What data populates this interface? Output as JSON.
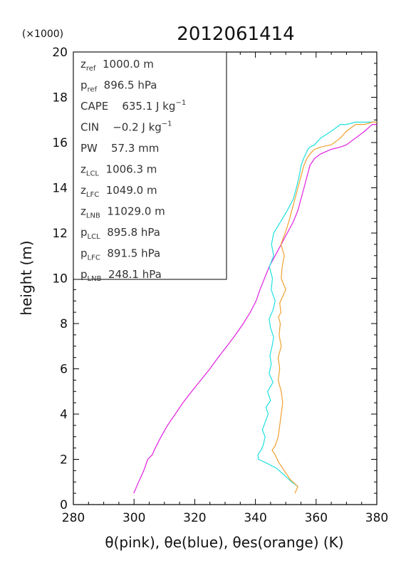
{
  "chart_data": {
    "type": "line",
    "title": "2012061414",
    "y_multiplier": "(×1000)",
    "xlabel": "θ(pink), θe(blue), θes(orange)   (K)",
    "ylabel": "height (m)",
    "xlim": [
      280,
      380
    ],
    "ylim": [
      0,
      20
    ],
    "x_ticks": [
      280,
      300,
      320,
      340,
      360,
      380
    ],
    "y_ticks": [
      0,
      2,
      4,
      6,
      8,
      10,
      12,
      14,
      16,
      18,
      20
    ],
    "grid": false,
    "series": [
      {
        "name": "θ",
        "color": "#e020e0",
        "x": [
          299.9,
          301.5,
          303.2,
          304.5,
          306.0,
          307.0,
          308.9,
          311.0,
          313.6,
          316.1,
          319.0,
          322.0,
          325.0,
          327.7,
          330.6,
          333.4,
          336.0,
          338.3,
          340.2,
          341.5,
          343.0,
          344.5,
          346.5,
          348.5,
          350.5,
          352.5,
          354.0,
          355.0,
          356.0,
          357.0,
          358.0,
          359.5,
          361.5,
          365.0,
          368.0,
          370.0,
          373.0,
          376.0,
          378.5,
          380.0
        ],
        "y": [
          0.5,
          1.0,
          1.5,
          2.0,
          2.2,
          2.5,
          3.0,
          3.5,
          4.0,
          4.5,
          5.0,
          5.5,
          6.0,
          6.5,
          7.0,
          7.5,
          8.0,
          8.5,
          9.0,
          9.5,
          10.0,
          10.5,
          11.0,
          11.5,
          12.0,
          12.5,
          13.0,
          13.5,
          14.0,
          14.5,
          15.0,
          15.3,
          15.5,
          15.7,
          15.8,
          15.9,
          16.2,
          16.5,
          16.8,
          16.8
        ]
      },
      {
        "name": "θe",
        "color": "#20e0e0",
        "x": [
          354.0,
          352.0,
          349.5,
          347.0,
          344.2,
          341.0,
          340.8,
          341.8,
          342.5,
          343.2,
          342.3,
          343.1,
          344.2,
          343.5,
          345.0,
          344.0,
          345.8,
          344.5,
          345.2,
          344.8,
          345.5,
          346.0,
          345.0,
          344.5,
          345.8,
          346.5,
          345.2,
          345.6,
          344.6,
          346.0,
          345.3,
          346.0,
          348.3,
          350.5,
          352.5,
          353.5,
          354.4,
          355.1,
          355.9,
          356.6,
          357.3,
          358.0,
          359.5,
          361.5,
          365.0,
          368.0,
          370.0,
          373.0,
          376.0,
          378.5,
          380.0
        ],
        "y": [
          0.8,
          1.0,
          1.3,
          1.6,
          1.8,
          2.0,
          2.2,
          2.4,
          2.6,
          3.0,
          3.3,
          3.6,
          4.0,
          4.3,
          4.6,
          5.0,
          5.4,
          5.8,
          6.2,
          6.6,
          7.0,
          7.4,
          7.8,
          8.2,
          8.6,
          9.0,
          9.5,
          10.0,
          10.5,
          11.0,
          11.5,
          12.0,
          12.5,
          13.0,
          13.5,
          14.0,
          14.5,
          15.0,
          15.3,
          15.5,
          15.7,
          15.8,
          15.9,
          16.2,
          16.5,
          16.8,
          16.8,
          16.9,
          16.9,
          16.9,
          16.9
        ]
      },
      {
        "name": "θes",
        "color": "#f0a030",
        "x": [
          353.0,
          354.0,
          351.5,
          349.5,
          347.5,
          346.5,
          345.5,
          346.5,
          347.5,
          348.0,
          348.5,
          349.0,
          348.5,
          347.5,
          348.0,
          347.5,
          348.5,
          347.8,
          348.2,
          347.6,
          348.4,
          348.0,
          350.0,
          348.5,
          348.8,
          349.5,
          348.4,
          349.8,
          351.0,
          352.0,
          353.0,
          354.0,
          355.0,
          356.0,
          357.0,
          358.0,
          359.5,
          361.5,
          365.0,
          368.0,
          370.0,
          373.0,
          376.0,
          378.5,
          380.0
        ],
        "y": [
          0.5,
          0.8,
          1.1,
          1.5,
          1.9,
          2.2,
          2.4,
          2.6,
          3.0,
          3.5,
          4.0,
          4.5,
          5.0,
          5.5,
          6.0,
          6.5,
          7.0,
          7.5,
          8.0,
          8.3,
          8.5,
          8.9,
          9.5,
          10.0,
          10.5,
          11.0,
          11.5,
          12.0,
          12.5,
          13.0,
          13.5,
          14.0,
          14.5,
          15.0,
          15.3,
          15.5,
          15.7,
          15.8,
          15.9,
          16.2,
          16.5,
          16.8,
          16.8,
          16.9,
          16.9
        ]
      }
    ],
    "legend_box": {
      "placement": "top-left",
      "entries": [
        {
          "sym": "z",
          "sub": "ref",
          "value": "1000.0 m",
          "sup": ""
        },
        {
          "sym": "p",
          "sub": "ref",
          "value": "896.5 hPa",
          "sup": ""
        },
        {
          "sym": "CAPE",
          "sub": "",
          "value": "635.1 J kg",
          "sup": "−1"
        },
        {
          "sym": "CIN",
          "sub": "",
          "value": "−0.2 J kg",
          "sup": "−1"
        },
        {
          "sym": "PW",
          "sub": "",
          "value": "57.3 mm",
          "sup": ""
        },
        {
          "sym": "z",
          "sub": "LCL",
          "value": "1006.3 m",
          "sup": ""
        },
        {
          "sym": "z",
          "sub": "LFC",
          "value": "1049.0 m",
          "sup": ""
        },
        {
          "sym": "z",
          "sub": "LNB",
          "value": "11029.0 m",
          "sup": ""
        },
        {
          "sym": "p",
          "sub": "LCL",
          "value": "895.8 hPa",
          "sup": ""
        },
        {
          "sym": "p",
          "sub": "LFC",
          "value": "891.5 hPa",
          "sup": ""
        },
        {
          "sym": "p",
          "sub": "LNB",
          "value": "248.1 hPa",
          "sup": ""
        }
      ]
    }
  }
}
